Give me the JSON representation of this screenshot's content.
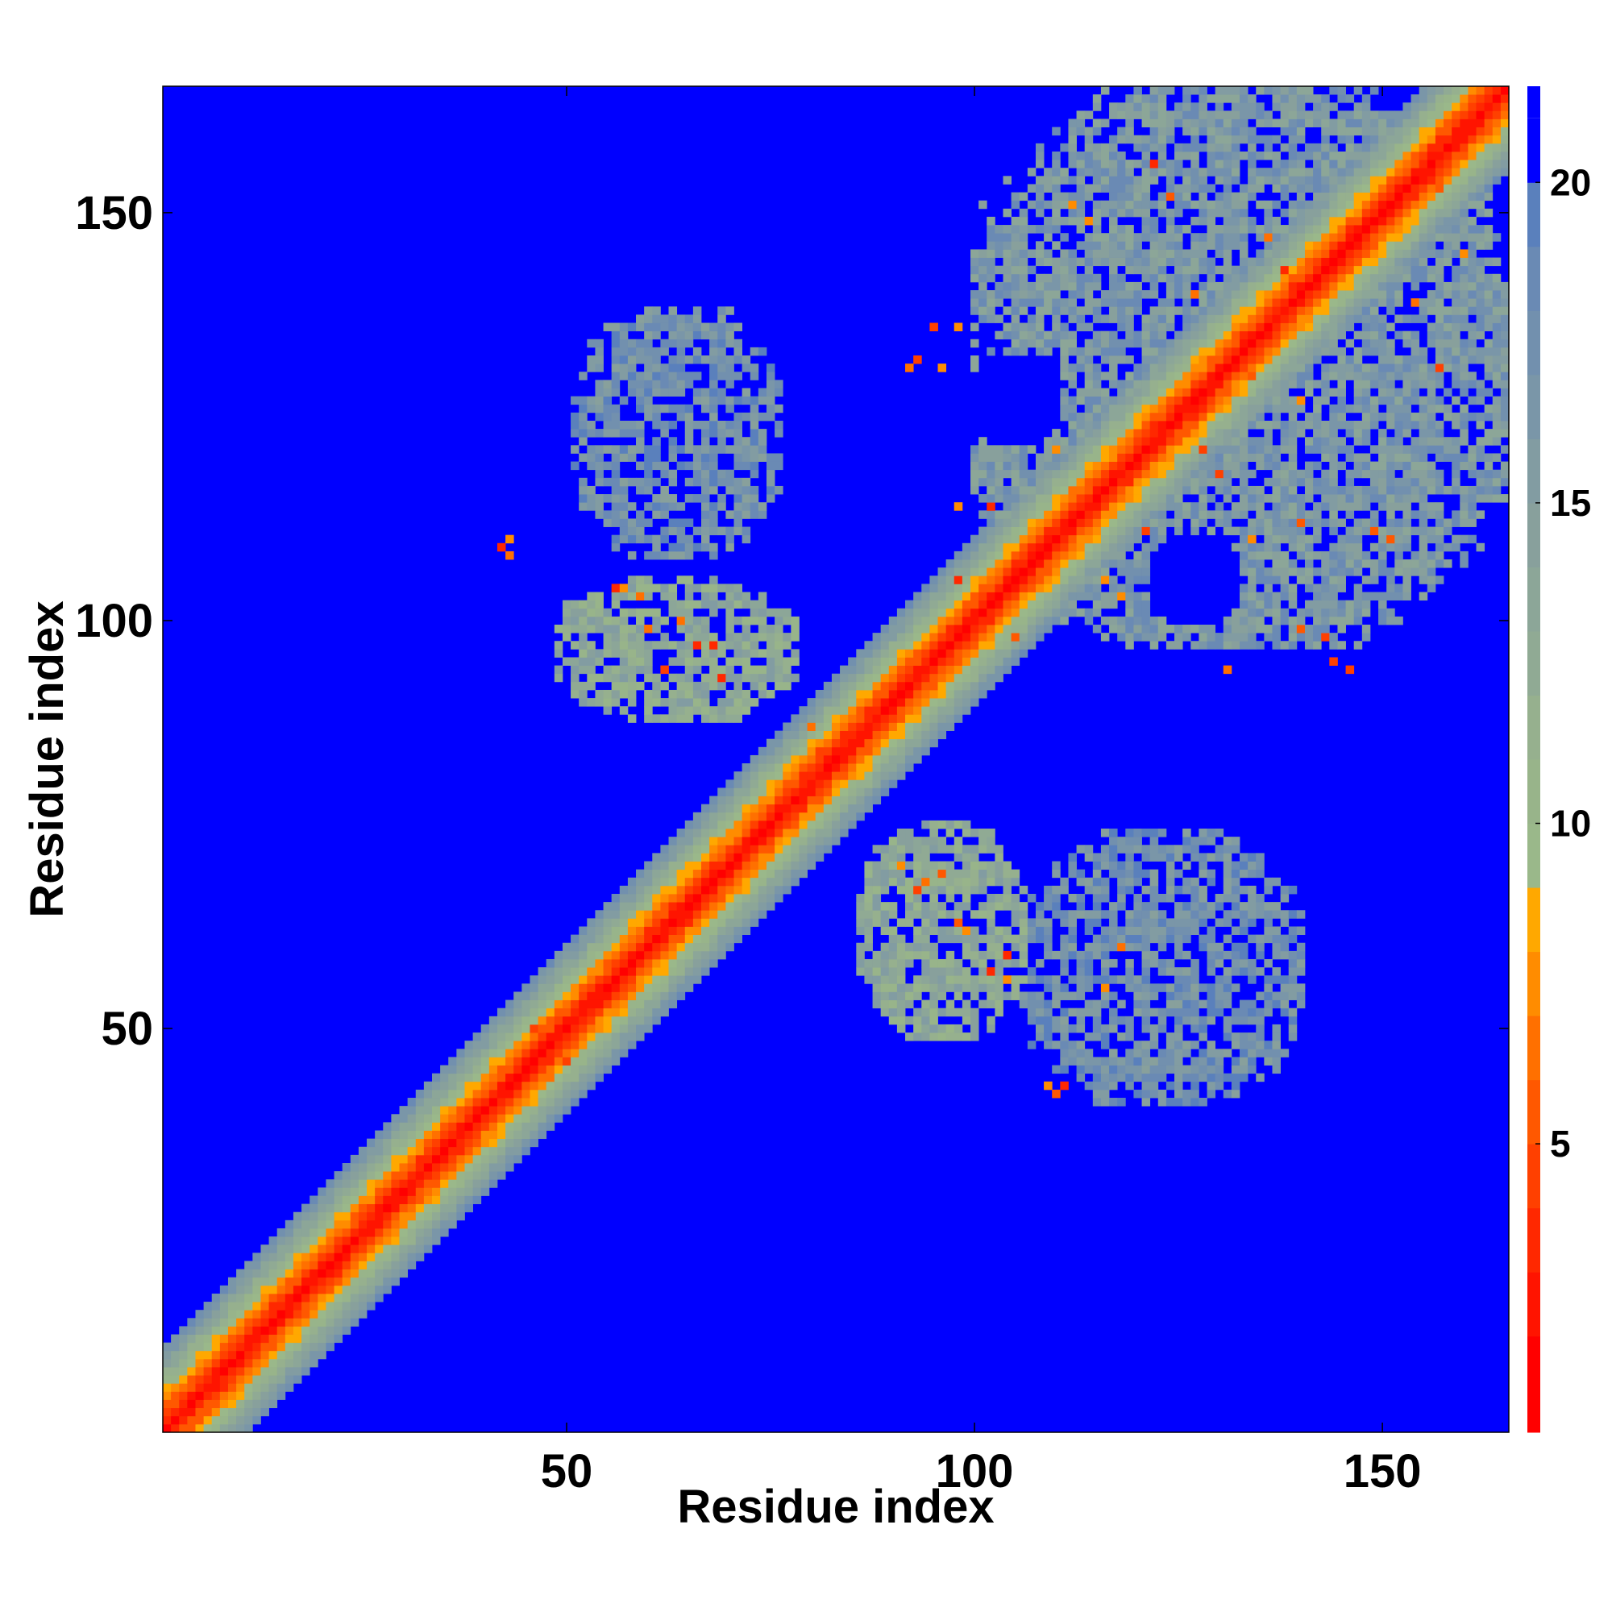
{
  "chart_data": {
    "type": "heatmap",
    "title": "",
    "xlabel": "Residue index",
    "ylabel": "Residue index",
    "n_residues": 165,
    "xlim": [
      1,
      165
    ],
    "ylim": [
      1,
      165
    ],
    "xticks": [
      50,
      100,
      150
    ],
    "yticks": [
      50,
      100,
      150
    ],
    "colorbar": {
      "range": [
        0.5,
        21.5
      ],
      "ticks": [
        5,
        10,
        15,
        20
      ],
      "levels": [
        {
          "max": 2,
          "color": "#ff0000"
        },
        {
          "max": 3,
          "color": "#ff1400"
        },
        {
          "max": 4,
          "color": "#ff2800"
        },
        {
          "max": 5,
          "color": "#ff4000"
        },
        {
          "max": 6,
          "color": "#ff5800"
        },
        {
          "max": 7,
          "color": "#ff7000"
        },
        {
          "max": 8,
          "color": "#ff8c00"
        },
        {
          "max": 9,
          "color": "#ffa800"
        },
        {
          "max": 10,
          "color": "#9ab88a"
        },
        {
          "max": 11,
          "color": "#98b48a"
        },
        {
          "max": 12,
          "color": "#96b08e"
        },
        {
          "max": 13,
          "color": "#90aa94"
        },
        {
          "max": 14,
          "color": "#8ca698"
        },
        {
          "max": 15,
          "color": "#88a09c"
        },
        {
          "max": 16,
          "color": "#829ca2"
        },
        {
          "max": 17,
          "color": "#7a96a8"
        },
        {
          "max": 18,
          "color": "#7290ae"
        },
        {
          "max": 19,
          "color": "#6a8ab4"
        },
        {
          "max": 20,
          "color": "#5a80bc"
        },
        {
          "max": 21,
          "color": "#0000ff"
        }
      ]
    },
    "background_value": 21,
    "diagonal_band": {
      "description_free": true,
      "core_value": 1.5,
      "ramp_per_residue": 1.6
    },
    "regions": [
      {
        "x_range": [
          100,
          165
        ],
        "y_range": [
          97,
          165
        ],
        "mean": 16
      },
      {
        "x_range": [
          51,
          76
        ],
        "y_range": [
          108,
          138
        ],
        "mean": 17.5
      },
      {
        "x_range": [
          49,
          78
        ],
        "y_range": [
          88,
          105
        ],
        "mean": 13
      },
      {
        "x_range": [
          86,
          106
        ],
        "y_range": [
          49,
          75
        ],
        "mean": 13
      },
      {
        "x_range": [
          106,
          140
        ],
        "y_range": [
          41,
          74
        ],
        "mean": 17.5
      }
    ],
    "cavities": [
      {
        "center": [
          105,
          127
        ],
        "radius": 6
      },
      {
        "center": [
          127,
          105
        ],
        "radius": 6
      }
    ],
    "hotspots": [
      [
        42,
        109
      ],
      [
        43,
        110
      ],
      [
        43,
        108
      ],
      [
        110,
        42
      ],
      [
        109,
        43
      ],
      [
        111,
        43
      ],
      [
        56,
        104
      ],
      [
        57,
        104
      ],
      [
        59,
        103
      ],
      [
        64,
        100
      ],
      [
        66,
        97
      ],
      [
        68,
        97
      ],
      [
        60,
        99
      ],
      [
        62,
        94
      ],
      [
        69,
        93
      ],
      [
        91,
        70
      ],
      [
        94,
        68
      ],
      [
        96,
        69
      ],
      [
        93,
        67
      ],
      [
        98,
        63
      ],
      [
        99,
        62
      ],
      [
        104,
        59
      ],
      [
        102,
        57
      ],
      [
        104,
        56
      ],
      [
        116,
        55
      ],
      [
        118,
        60
      ],
      [
        92,
        131
      ],
      [
        93,
        132
      ],
      [
        95,
        136
      ],
      [
        96,
        131
      ],
      [
        98,
        136
      ],
      [
        112,
        151
      ],
      [
        114,
        149
      ],
      [
        122,
        156
      ],
      [
        124,
        152
      ],
      [
        133,
        133
      ],
      [
        134,
        130
      ],
      [
        128,
        121
      ],
      [
        130,
        118
      ],
      [
        134,
        110
      ],
      [
        140,
        112
      ],
      [
        149,
        111
      ],
      [
        151,
        110
      ],
      [
        143,
        98
      ],
      [
        144,
        95
      ],
      [
        146,
        94
      ],
      [
        140,
        99
      ],
      [
        131,
        94
      ],
      [
        157,
        131
      ],
      [
        154,
        139
      ],
      [
        160,
        145
      ],
      [
        150,
        150
      ],
      [
        155,
        156
      ],
      [
        157,
        153
      ],
      [
        136,
        147
      ],
      [
        138,
        143
      ],
      [
        110,
        121
      ],
      [
        112,
        116
      ],
      [
        116,
        105
      ],
      [
        118,
        103
      ],
      [
        102,
        114
      ],
      [
        98,
        114
      ],
      [
        121,
        111
      ],
      [
        84,
        82
      ],
      [
        81,
        84
      ],
      [
        80,
        87
      ],
      [
        73,
        75
      ],
      [
        75,
        73
      ],
      [
        46,
        50
      ],
      [
        50,
        46
      ],
      [
        48,
        44
      ],
      [
        52,
        48
      ],
      [
        105,
        98
      ],
      [
        98,
        105
      ],
      [
        127,
        140
      ],
      [
        140,
        127
      ]
    ]
  }
}
